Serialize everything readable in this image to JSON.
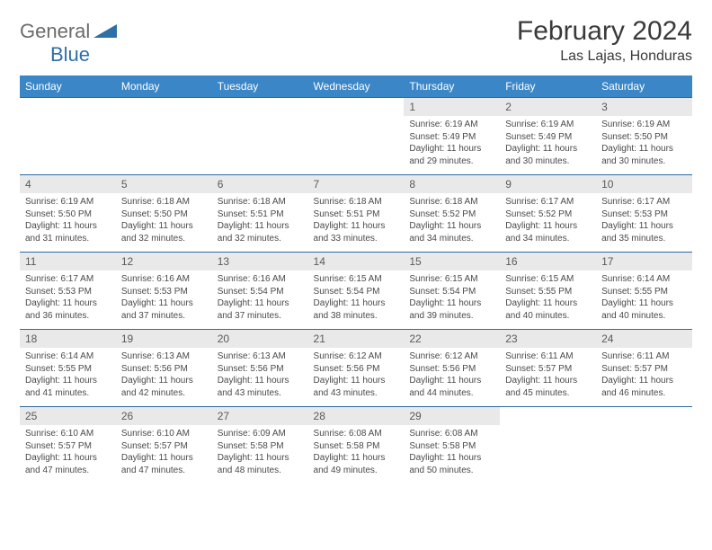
{
  "logo": {
    "general": "General",
    "blue": "Blue"
  },
  "title": "February 2024",
  "location": "Las Lajas, Honduras",
  "colors": {
    "header_bg": "#3b86c6",
    "header_text": "#ffffff",
    "daynum_bg": "#e9e9e9",
    "row_border": "#2e6ba3",
    "logo_blue": "#2f6fa8",
    "logo_gray": "#6b6b6b"
  },
  "dayNames": [
    "Sunday",
    "Monday",
    "Tuesday",
    "Wednesday",
    "Thursday",
    "Friday",
    "Saturday"
  ],
  "weeks": [
    [
      {
        "empty": true
      },
      {
        "empty": true
      },
      {
        "empty": true
      },
      {
        "empty": true
      },
      {
        "n": "1",
        "sunrise": "Sunrise: 6:19 AM",
        "sunset": "Sunset: 5:49 PM",
        "daylight1": "Daylight: 11 hours",
        "daylight2": "and 29 minutes."
      },
      {
        "n": "2",
        "sunrise": "Sunrise: 6:19 AM",
        "sunset": "Sunset: 5:49 PM",
        "daylight1": "Daylight: 11 hours",
        "daylight2": "and 30 minutes."
      },
      {
        "n": "3",
        "sunrise": "Sunrise: 6:19 AM",
        "sunset": "Sunset: 5:50 PM",
        "daylight1": "Daylight: 11 hours",
        "daylight2": "and 30 minutes."
      }
    ],
    [
      {
        "n": "4",
        "sunrise": "Sunrise: 6:19 AM",
        "sunset": "Sunset: 5:50 PM",
        "daylight1": "Daylight: 11 hours",
        "daylight2": "and 31 minutes."
      },
      {
        "n": "5",
        "sunrise": "Sunrise: 6:18 AM",
        "sunset": "Sunset: 5:50 PM",
        "daylight1": "Daylight: 11 hours",
        "daylight2": "and 32 minutes."
      },
      {
        "n": "6",
        "sunrise": "Sunrise: 6:18 AM",
        "sunset": "Sunset: 5:51 PM",
        "daylight1": "Daylight: 11 hours",
        "daylight2": "and 32 minutes."
      },
      {
        "n": "7",
        "sunrise": "Sunrise: 6:18 AM",
        "sunset": "Sunset: 5:51 PM",
        "daylight1": "Daylight: 11 hours",
        "daylight2": "and 33 minutes."
      },
      {
        "n": "8",
        "sunrise": "Sunrise: 6:18 AM",
        "sunset": "Sunset: 5:52 PM",
        "daylight1": "Daylight: 11 hours",
        "daylight2": "and 34 minutes."
      },
      {
        "n": "9",
        "sunrise": "Sunrise: 6:17 AM",
        "sunset": "Sunset: 5:52 PM",
        "daylight1": "Daylight: 11 hours",
        "daylight2": "and 34 minutes."
      },
      {
        "n": "10",
        "sunrise": "Sunrise: 6:17 AM",
        "sunset": "Sunset: 5:53 PM",
        "daylight1": "Daylight: 11 hours",
        "daylight2": "and 35 minutes."
      }
    ],
    [
      {
        "n": "11",
        "sunrise": "Sunrise: 6:17 AM",
        "sunset": "Sunset: 5:53 PM",
        "daylight1": "Daylight: 11 hours",
        "daylight2": "and 36 minutes."
      },
      {
        "n": "12",
        "sunrise": "Sunrise: 6:16 AM",
        "sunset": "Sunset: 5:53 PM",
        "daylight1": "Daylight: 11 hours",
        "daylight2": "and 37 minutes."
      },
      {
        "n": "13",
        "sunrise": "Sunrise: 6:16 AM",
        "sunset": "Sunset: 5:54 PM",
        "daylight1": "Daylight: 11 hours",
        "daylight2": "and 37 minutes."
      },
      {
        "n": "14",
        "sunrise": "Sunrise: 6:15 AM",
        "sunset": "Sunset: 5:54 PM",
        "daylight1": "Daylight: 11 hours",
        "daylight2": "and 38 minutes."
      },
      {
        "n": "15",
        "sunrise": "Sunrise: 6:15 AM",
        "sunset": "Sunset: 5:54 PM",
        "daylight1": "Daylight: 11 hours",
        "daylight2": "and 39 minutes."
      },
      {
        "n": "16",
        "sunrise": "Sunrise: 6:15 AM",
        "sunset": "Sunset: 5:55 PM",
        "daylight1": "Daylight: 11 hours",
        "daylight2": "and 40 minutes."
      },
      {
        "n": "17",
        "sunrise": "Sunrise: 6:14 AM",
        "sunset": "Sunset: 5:55 PM",
        "daylight1": "Daylight: 11 hours",
        "daylight2": "and 40 minutes."
      }
    ],
    [
      {
        "n": "18",
        "sunrise": "Sunrise: 6:14 AM",
        "sunset": "Sunset: 5:55 PM",
        "daylight1": "Daylight: 11 hours",
        "daylight2": "and 41 minutes."
      },
      {
        "n": "19",
        "sunrise": "Sunrise: 6:13 AM",
        "sunset": "Sunset: 5:56 PM",
        "daylight1": "Daylight: 11 hours",
        "daylight2": "and 42 minutes."
      },
      {
        "n": "20",
        "sunrise": "Sunrise: 6:13 AM",
        "sunset": "Sunset: 5:56 PM",
        "daylight1": "Daylight: 11 hours",
        "daylight2": "and 43 minutes."
      },
      {
        "n": "21",
        "sunrise": "Sunrise: 6:12 AM",
        "sunset": "Sunset: 5:56 PM",
        "daylight1": "Daylight: 11 hours",
        "daylight2": "and 43 minutes."
      },
      {
        "n": "22",
        "sunrise": "Sunrise: 6:12 AM",
        "sunset": "Sunset: 5:56 PM",
        "daylight1": "Daylight: 11 hours",
        "daylight2": "and 44 minutes."
      },
      {
        "n": "23",
        "sunrise": "Sunrise: 6:11 AM",
        "sunset": "Sunset: 5:57 PM",
        "daylight1": "Daylight: 11 hours",
        "daylight2": "and 45 minutes."
      },
      {
        "n": "24",
        "sunrise": "Sunrise: 6:11 AM",
        "sunset": "Sunset: 5:57 PM",
        "daylight1": "Daylight: 11 hours",
        "daylight2": "and 46 minutes."
      }
    ],
    [
      {
        "n": "25",
        "sunrise": "Sunrise: 6:10 AM",
        "sunset": "Sunset: 5:57 PM",
        "daylight1": "Daylight: 11 hours",
        "daylight2": "and 47 minutes."
      },
      {
        "n": "26",
        "sunrise": "Sunrise: 6:10 AM",
        "sunset": "Sunset: 5:57 PM",
        "daylight1": "Daylight: 11 hours",
        "daylight2": "and 47 minutes."
      },
      {
        "n": "27",
        "sunrise": "Sunrise: 6:09 AM",
        "sunset": "Sunset: 5:58 PM",
        "daylight1": "Daylight: 11 hours",
        "daylight2": "and 48 minutes."
      },
      {
        "n": "28",
        "sunrise": "Sunrise: 6:08 AM",
        "sunset": "Sunset: 5:58 PM",
        "daylight1": "Daylight: 11 hours",
        "daylight2": "and 49 minutes."
      },
      {
        "n": "29",
        "sunrise": "Sunrise: 6:08 AM",
        "sunset": "Sunset: 5:58 PM",
        "daylight1": "Daylight: 11 hours",
        "daylight2": "and 50 minutes."
      },
      {
        "empty": true
      },
      {
        "empty": true
      }
    ]
  ]
}
